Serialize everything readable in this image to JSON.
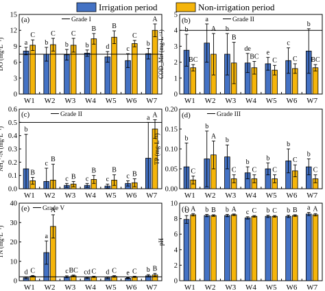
{
  "legend": {
    "items": [
      {
        "label": "Irrigation period",
        "color": "#4472C4"
      },
      {
        "label": "Non-irrigation period",
        "color": "#F5B50A"
      }
    ],
    "placement": "top-center"
  },
  "chart_data": [
    {
      "panel": "(a)",
      "type": "bar",
      "ylabel": "DO (mg·L⁻¹)",
      "ylim": [
        0,
        15
      ],
      "yticks": [
        0,
        3,
        6,
        9,
        12,
        15
      ],
      "categories": [
        "W1",
        "W2",
        "W3",
        "W4",
        "W5",
        "W6",
        "W7"
      ],
      "series": [
        {
          "name": "Irrigation period",
          "values": [
            8.1,
            7.5,
            7.4,
            7.7,
            7.0,
            6.3,
            7.6
          ],
          "errors": [
            0.7,
            1.3,
            1.0,
            0.6,
            1.0,
            1.3,
            1.0
          ],
          "letters": [
            "a",
            "b",
            "b",
            "b",
            "d",
            "c",
            "b"
          ]
        },
        {
          "name": "Non-irrigation period",
          "values": [
            9.2,
            9.3,
            9.2,
            10.4,
            10.7,
            9.5,
            12.0
          ],
          "errors": [
            1.0,
            1.2,
            1.3,
            1.0,
            1.2,
            0.6,
            1.2
          ],
          "letters": [
            "C",
            "C",
            "C",
            "B",
            "B",
            "C",
            "A"
          ]
        }
      ],
      "reference": {
        "label": "Grade I",
        "value": 7.5
      }
    },
    {
      "panel": "(b)",
      "type": "bar",
      "ylabel": "COD_Mn (mg·L⁻¹)",
      "ylim": [
        0,
        5
      ],
      "yticks": [
        0,
        1,
        2,
        3,
        4,
        5
      ],
      "categories": [
        "W1",
        "W2",
        "W3",
        "W4",
        "W5",
        "W6",
        "W7"
      ],
      "series": [
        {
          "name": "Irrigation period",
          "values": [
            2.75,
            3.2,
            2.5,
            1.95,
            1.9,
            2.1,
            2.7
          ],
          "errors": [
            1.0,
            1.2,
            1.3,
            0.6,
            0.4,
            0.8,
            1.4
          ],
          "letters": [
            "b",
            "a",
            "b",
            "de",
            "e",
            "c",
            "b"
          ]
        },
        {
          "name": "Non-irrigation period",
          "values": [
            1.65,
            2.5,
            1.95,
            1.65,
            1.5,
            1.6,
            1.65
          ],
          "errors": [
            0.2,
            1.3,
            1.3,
            0.4,
            0.3,
            0.3,
            0.2
          ],
          "letters": [
            "BC",
            "A",
            "B",
            "BC",
            "C",
            "C",
            "BC"
          ]
        }
      ],
      "reference": {
        "label": "Grade II",
        "value": 4.0
      }
    },
    {
      "panel": "(c)",
      "type": "bar",
      "ylabel": "NH₄⁺-N (mg·L⁻¹)",
      "ylim": [
        0,
        0.6
      ],
      "yticks": [
        0.0,
        0.1,
        0.2,
        0.3,
        0.4,
        0.5,
        0.6
      ],
      "categories": [
        "W1",
        "W2",
        "W3",
        "W4",
        "W5",
        "W6",
        "W7"
      ],
      "series": [
        {
          "name": "Irrigation period",
          "values": [
            0.15,
            0.055,
            0.025,
            0.025,
            0.02,
            0.04,
            0.23
          ],
          "errors": [
            0.26,
            0.1,
            0.015,
            0.015,
            0.015,
            0.02,
            0.27
          ],
          "letters": [
            "b",
            "c",
            "c",
            "c",
            "c",
            "c",
            "a"
          ]
        },
        {
          "name": "Non-irrigation period",
          "values": [
            0.06,
            0.065,
            0.035,
            0.07,
            0.065,
            0.045,
            0.45
          ],
          "errors": [
            0.025,
            0.12,
            0.02,
            0.03,
            0.04,
            0.03,
            0.07
          ],
          "letters": [
            "B",
            "B",
            "B",
            "B",
            "B",
            "B",
            "A"
          ]
        }
      ],
      "reference": {
        "label": "Grade II",
        "value": 0.5
      }
    },
    {
      "panel": "(d)",
      "type": "bar",
      "ylabel": "TP (mg·L⁻¹)",
      "ylim": [
        0,
        0.2
      ],
      "yticks": [
        0.0,
        0.05,
        0.1,
        0.15,
        0.2
      ],
      "categories": [
        "W1",
        "W2",
        "W3",
        "W4",
        "W5",
        "W6",
        "W7"
      ],
      "series": [
        {
          "name": "Irrigation period",
          "values": [
            0.055,
            0.075,
            0.08,
            0.04,
            0.05,
            0.07,
            0.055
          ],
          "errors": [
            0.06,
            0.07,
            0.03,
            0.015,
            0.015,
            0.03,
            0.02
          ],
          "letters": [
            "b",
            "b",
            "b",
            "b",
            "b",
            "b",
            "b"
          ]
        },
        {
          "name": "Non-irrigation period",
          "values": [
            0.022,
            0.085,
            0.025,
            0.025,
            0.025,
            0.045,
            0.025
          ],
          "errors": [
            0.01,
            0.035,
            0.01,
            0.01,
            0.01,
            0.015,
            0.01
          ],
          "letters": [
            "C",
            "A",
            "C",
            "C",
            "C",
            "C",
            "C"
          ]
        }
      ],
      "reference": {
        "label": "Grade III",
        "value": 0.2
      }
    },
    {
      "panel": "(e)",
      "type": "bar",
      "ylabel": "TN (mg·L⁻¹)",
      "ylim": [
        0,
        40
      ],
      "yticks": [
        0,
        10,
        20,
        30,
        40
      ],
      "categories": [
        "W1",
        "W2",
        "W3",
        "W4",
        "W5",
        "W6",
        "W7"
      ],
      "series": [
        {
          "name": "Irrigation period",
          "values": [
            1.5,
            14.5,
            2.0,
            1.5,
            1.5,
            1.3,
            2.5
          ],
          "errors": [
            0.5,
            6.0,
            0.5,
            0.4,
            0.5,
            0.3,
            0.6
          ],
          "letters": [
            "d",
            "a",
            "c",
            "cd",
            "d",
            "e",
            "b"
          ]
        },
        {
          "name": "Non-irrigation period",
          "values": [
            2.3,
            28.0,
            2.5,
            2.0,
            2.2,
            2.0,
            3.0
          ],
          "errors": [
            0.4,
            6.0,
            0.4,
            0.3,
            0.4,
            0.3,
            0.8
          ],
          "letters": [
            "C",
            "A",
            "BC",
            "C",
            "C",
            "C",
            "B"
          ]
        }
      ],
      "reference": {
        "label": "Grade V",
        "value": 2.0
      }
    },
    {
      "panel": "(f)",
      "type": "bar",
      "ylabel": "pH",
      "ylim": [
        0,
        10
      ],
      "yticks": [
        0,
        2,
        4,
        6,
        8,
        10
      ],
      "categories": [
        "W1",
        "W2",
        "W3",
        "W4",
        "W5",
        "W6",
        "W7"
      ],
      "series": [
        {
          "name": "Irrigation period",
          "values": [
            7.9,
            8.4,
            8.4,
            8.1,
            8.3,
            8.3,
            8.6
          ],
          "errors": [
            0.5,
            0.15,
            0.15,
            0.15,
            0.15,
            0.15,
            0.2
          ],
          "letters": [
            "c",
            "b",
            "b",
            "c",
            "b",
            "b",
            "a"
          ]
        },
        {
          "name": "Non-irrigation period",
          "values": [
            8.5,
            8.4,
            8.5,
            8.3,
            8.3,
            8.4,
            8.5
          ],
          "errors": [
            0.15,
            0.1,
            0.1,
            0.1,
            0.1,
            0.1,
            0.15
          ],
          "letters": [
            "A",
            "B",
            "A",
            "C",
            "C",
            "B",
            "A"
          ]
        }
      ],
      "reference": null
    }
  ]
}
